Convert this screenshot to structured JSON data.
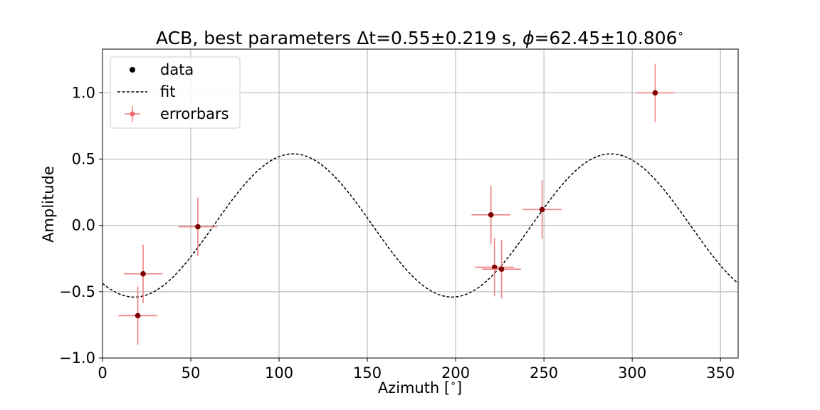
{
  "chart_data": {
    "type": "scatter",
    "title_parts": {
      "prefix": "ACB, best parameters Δt=",
      "dt": "0.55±0.219 s, ",
      "phi_symbol": "ϕ",
      "phi": "=62.45±10.806",
      "deg": "∘"
    },
    "xlabel": "Azimuth [",
    "xlabel_deg": "∘",
    "xlabel_close": "]",
    "ylabel": "Amplitude",
    "xlim": [
      0,
      360
    ],
    "ylim": [
      -1.0,
      1.33
    ],
    "xticks": [
      0,
      50,
      100,
      150,
      200,
      250,
      300,
      350
    ],
    "xtick_labels": [
      "0",
      "50",
      "100",
      "150",
      "200",
      "250",
      "300",
      "350"
    ],
    "yticks": [
      -1.0,
      -0.5,
      0.0,
      0.5,
      1.0
    ],
    "ytick_labels": [
      "−1.0",
      "−0.5",
      "0.0",
      "0.5",
      "1.0"
    ],
    "grid": true,
    "legend_position": "top-left",
    "legend": [
      {
        "label": "data",
        "kind": "marker"
      },
      {
        "label": "fit",
        "kind": "dashed-line"
      },
      {
        "label": "errorbars",
        "kind": "errorbar"
      }
    ],
    "fit": {
      "amplitude": 0.54,
      "peak_azimuth_1": 108,
      "period_deg": 180
    },
    "points": [
      {
        "x": 20,
        "y": -0.68,
        "xerr": 11,
        "yerr": 0.22
      },
      {
        "x": 23,
        "y": -0.365,
        "xerr": 11,
        "yerr": 0.22
      },
      {
        "x": 54,
        "y": -0.01,
        "xerr": 11,
        "yerr": 0.22
      },
      {
        "x": 220,
        "y": 0.08,
        "xerr": 11,
        "yerr": 0.22
      },
      {
        "x": 222,
        "y": -0.315,
        "xerr": 11,
        "yerr": 0.22
      },
      {
        "x": 226,
        "y": -0.33,
        "xerr": 11,
        "yerr": 0.22
      },
      {
        "x": 249,
        "y": 0.12,
        "xerr": 11,
        "yerr": 0.22
      },
      {
        "x": 313,
        "y": 1.0,
        "xerr": 11,
        "yerr": 0.22
      }
    ],
    "colors": {
      "marker": "#800000",
      "errorbar": "#f08080",
      "fit": "#000000",
      "legend_errorbar_marker": "#f06a6a"
    }
  }
}
